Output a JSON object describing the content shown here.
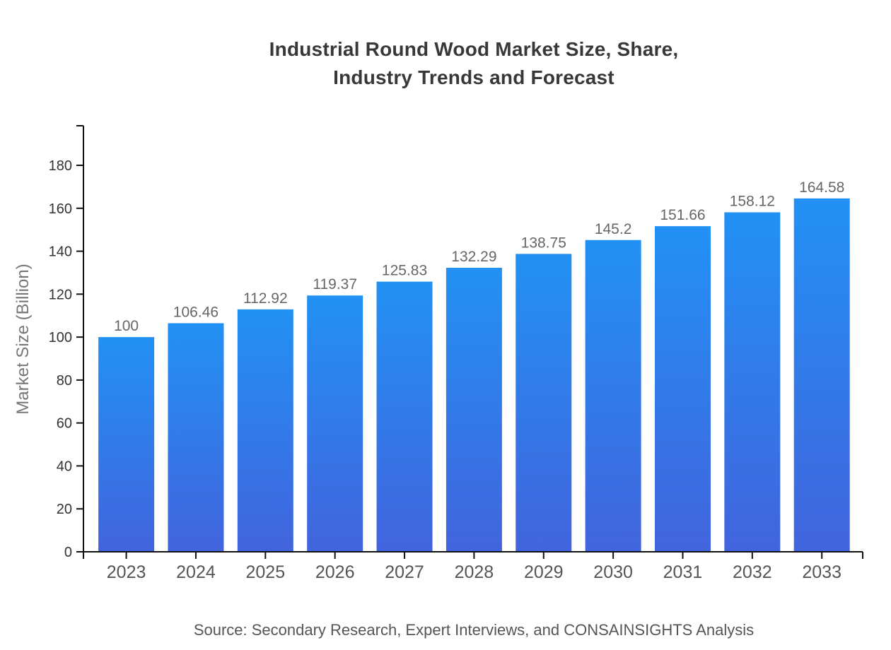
{
  "title": "Industrial Round Wood Market Size, Share,\nIndustry Trends and Forecast",
  "source_note": "Source: Secondary Research, Expert Interviews, and CONSAINSIGHTS Analysis",
  "chart_data": {
    "type": "bar",
    "title": "Industrial Round Wood Market Size, Share, Industry Trends and Forecast",
    "categories": [
      "2023",
      "2024",
      "2025",
      "2026",
      "2027",
      "2028",
      "2029",
      "2030",
      "2031",
      "2032",
      "2033"
    ],
    "values": [
      100,
      106.46,
      112.92,
      119.37,
      125.83,
      132.29,
      138.75,
      145.2,
      151.66,
      158.12,
      164.58
    ],
    "xlabel": "",
    "ylabel": "Market Size (Billion)",
    "ylim": [
      0,
      200
    ],
    "yticks": [
      0,
      20,
      40,
      60,
      80,
      100,
      120,
      140,
      160,
      180
    ],
    "grid": false,
    "legend": false,
    "bar_gradient_top": "#2291F4",
    "bar_gradient_bottom": "#4264DD"
  },
  "colors": {
    "background": "#ffffff",
    "title_text": "#383838",
    "axis_line": "#111111",
    "y_tick_label": "#333333",
    "x_tick_label": "#555555",
    "value_label": "#666666",
    "y_axis_title": "#777777",
    "source_text": "#555555"
  }
}
